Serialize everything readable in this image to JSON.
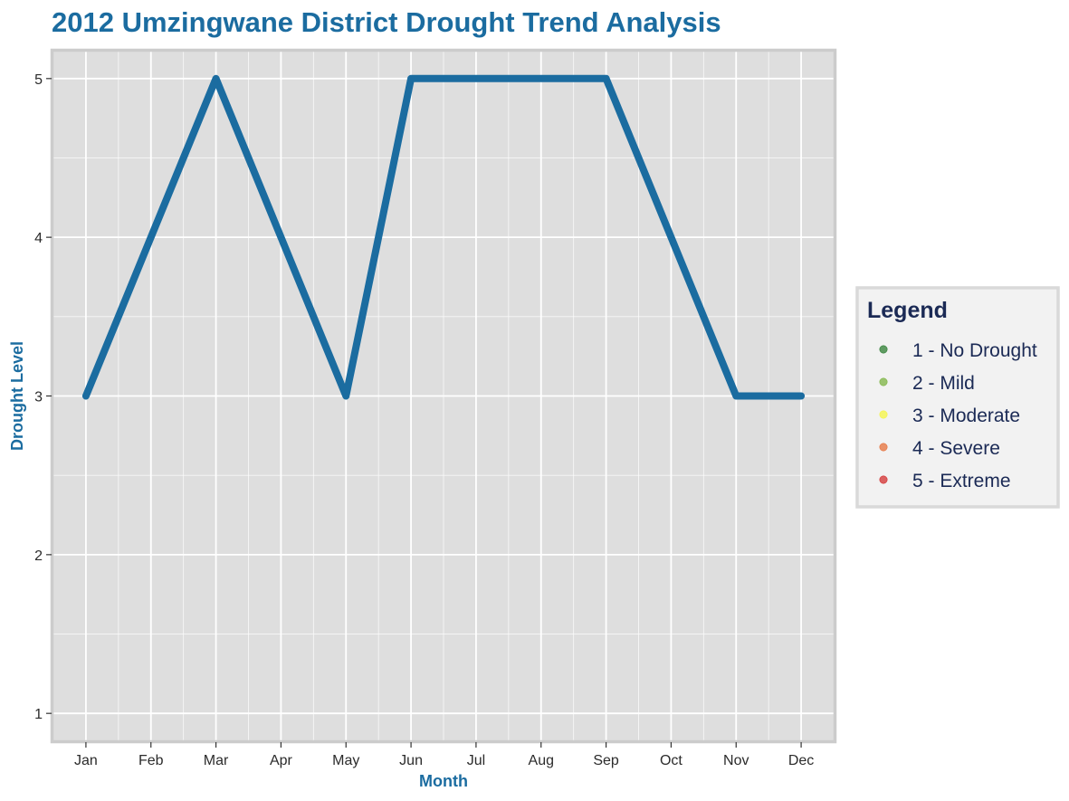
{
  "chart_data": {
    "type": "line",
    "title": "2012 Umzingwane District Drought Trend Analysis",
    "xlabel": "Month",
    "ylabel": "Drought Level",
    "categories": [
      "Jan",
      "Feb",
      "Mar",
      "Apr",
      "May",
      "Jun",
      "Jul",
      "Aug",
      "Sep",
      "Oct",
      "Nov",
      "Dec"
    ],
    "series": [
      {
        "values": [
          3,
          4,
          5,
          4,
          3,
          5,
          5,
          5,
          5,
          4,
          3,
          3
        ],
        "color": "#1b6ca0"
      }
    ],
    "ylim": [
      0.83,
      5.17
    ],
    "yticks": [
      "1",
      "2",
      "3",
      "4",
      "5"
    ],
    "grid": true,
    "legend": {
      "title": "Legend",
      "position": "right",
      "items": [
        {
          "label": "1 - No Drought",
          "color": "#2e7d32"
        },
        {
          "label": "2 - Mild",
          "color": "#7cb342"
        },
        {
          "label": "3 - Moderate",
          "color": "#f5f542"
        },
        {
          "label": "4 - Severe",
          "color": "#e6703a"
        },
        {
          "label": "5 - Extreme",
          "color": "#d32f2f"
        }
      ]
    }
  },
  "colors": {
    "title": "#1b6ca0",
    "axis_title": "#1b6ca0",
    "panel_background": "#dedede",
    "panel_border": "#cccccc",
    "grid": "#ffffff",
    "legend_text": "#1b2a55",
    "legend_background": "#f2f2f2",
    "legend_border": "#d9d9d9"
  }
}
